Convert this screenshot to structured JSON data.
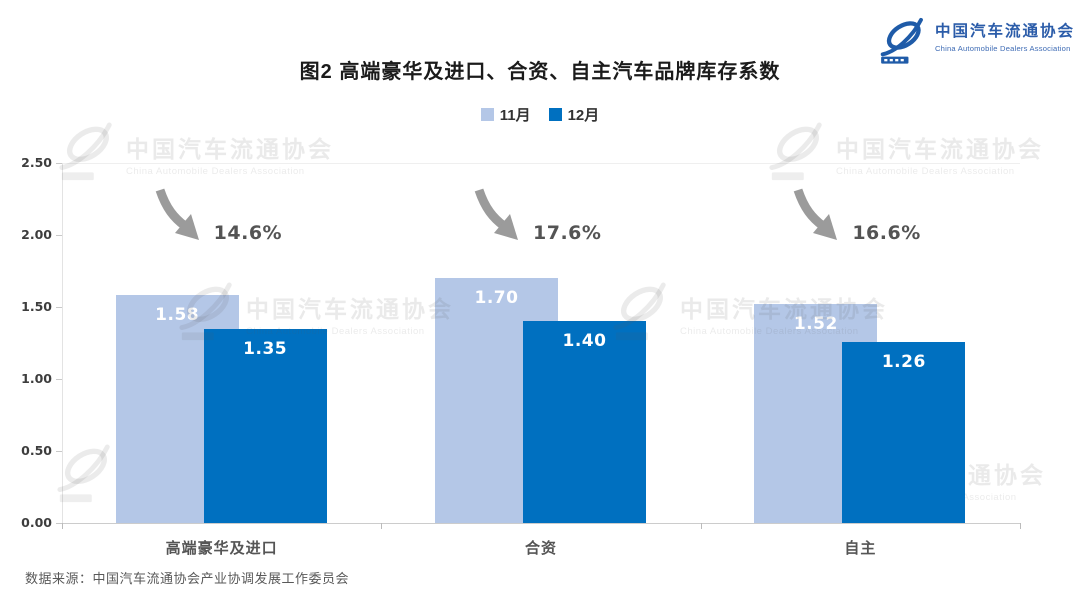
{
  "header": {
    "logo_title_cn": "中国汽车流通协会",
    "logo_title_en": "China Automobile Dealers Association"
  },
  "title": "图2  高端豪华及进口、合资、自主汽车品牌库存系数",
  "chart_data": {
    "type": "bar",
    "title": "图2  高端豪华及进口、合资、自主汽车品牌库存系数",
    "categories": [
      "高端豪华及进口",
      "合资",
      "自主"
    ],
    "series": [
      {
        "name": "11月",
        "color": "#B4C7E7",
        "values": [
          1.58,
          1.7,
          1.52
        ]
      },
      {
        "name": "12月",
        "color": "#0070C0",
        "values": [
          1.35,
          1.4,
          1.26
        ]
      }
    ],
    "decline_annotations": [
      "14.6%",
      "17.6%",
      "16.6%"
    ],
    "xlabel": "",
    "ylabel": "",
    "ylim": [
      0,
      2.5
    ],
    "yticks": [
      "2.50",
      "2.00",
      "1.50",
      "1.00",
      "0.50",
      "0.00"
    ],
    "grid": false,
    "legend_position": "top-center",
    "annotation_color": "#545454",
    "arrow_color": "#9B9B9B"
  },
  "watermark": {
    "text_cn": "中国汽车流通协会",
    "text_en": "China Automobile Dealers Association"
  },
  "footer": {
    "source": "数据来源：中国汽车流通协会产业协调发展工作委员会"
  }
}
